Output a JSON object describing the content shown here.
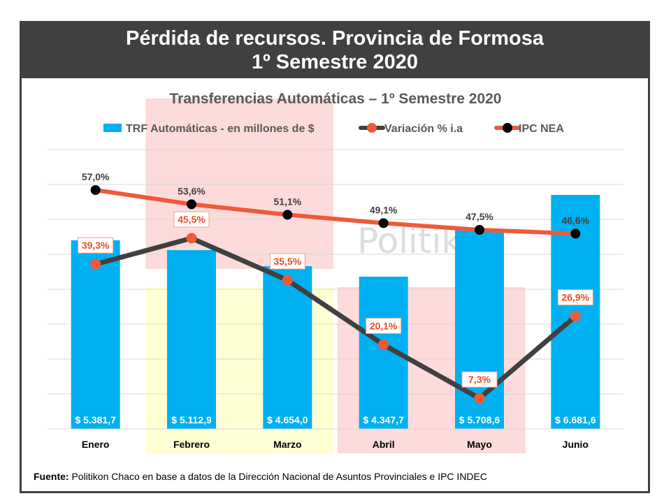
{
  "banner": {
    "line1": "Pérdida de recursos. Provincia de Formosa",
    "line2": "1º Semestre 2020"
  },
  "watermark": "Politikon",
  "source": {
    "label": "Fuente:",
    "text": "Politikon Chaco en base a datos de la Dirección Nacional de Asuntos Provinciales e IPC INDEC"
  },
  "colors": {
    "bar": "#00b0f0",
    "variacion_line": "#404040",
    "variacion_marker": "#ee5a3a",
    "ipc_line": "#ee5a3a",
    "ipc_marker": "#000000",
    "highlight_red": "#fcd5d3",
    "highlight_yellow": "#ffffcc"
  },
  "chart_data": {
    "type": "bar",
    "title": "Transferencias Automáticas – 1º Semestre 2020",
    "categories": [
      "Enero",
      "Febrero",
      "Marzo",
      "Abril",
      "Mayo",
      "Junio"
    ],
    "bar_labels": [
      "$ 5.381,7",
      "$ 5.112,9",
      "$ 4.654,0",
      "$ 4.347,7",
      "$ 5.708,6",
      "$ 6.681,6"
    ],
    "series": [
      {
        "name": "TRF Automáticas - en millones de $",
        "kind": "bar",
        "values": [
          5381.7,
          5112.9,
          4654.0,
          4347.7,
          5708.6,
          6681.6
        ]
      },
      {
        "name": "Variación % i.a",
        "kind": "line",
        "values": [
          39.3,
          45.5,
          35.5,
          20.1,
          7.3,
          26.9
        ],
        "labels": [
          "39,3%",
          "45,5%",
          "35,5%",
          "20,1%",
          "7,3%",
          "26,9%"
        ]
      },
      {
        "name": "IPC NEA",
        "kind": "line",
        "values": [
          57.0,
          53.6,
          51.1,
          49.1,
          47.5,
          46.6
        ],
        "labels": [
          "57,0%",
          "53,6%",
          "51,1%",
          "49,1%",
          "47,5%",
          "46,6%"
        ]
      }
    ],
    "bar_axis_range": [
      0,
      8000
    ],
    "line_axis_range": [
      0,
      64
    ],
    "grid": true,
    "legend": "top",
    "highlights": [
      {
        "from": "Febrero",
        "to": "Marzo",
        "color": "red"
      },
      {
        "from": "Febrero",
        "to": "Marzo",
        "color": "yellow"
      },
      {
        "from": "Abril",
        "to": "Mayo",
        "color": "red"
      }
    ]
  }
}
